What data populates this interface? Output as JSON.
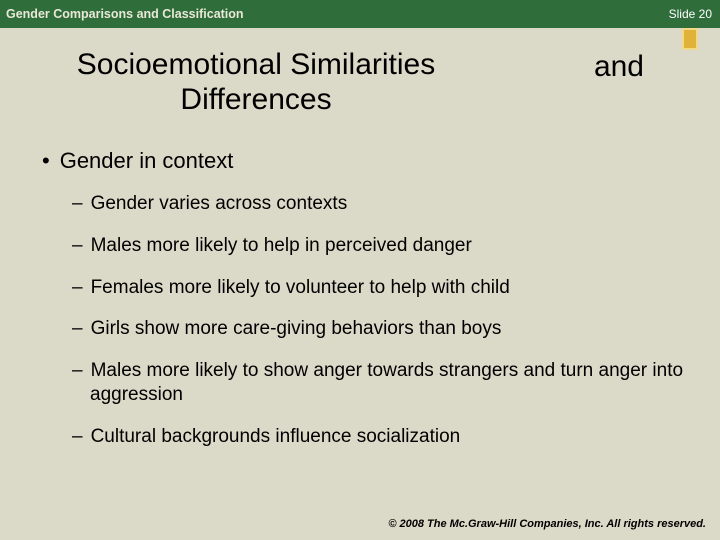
{
  "colors": {
    "background": "#dbd9c8",
    "header_bar": "#2f6d3b",
    "header_text": "#e9e7d6",
    "slide_num_text": "#ffffff",
    "accent_fill": "#e0b23a",
    "accent_border": "#f2d98a",
    "body_text": "#000000"
  },
  "header": {
    "chapter_title": "Gender Comparisons and Classification",
    "slide_label": "Slide 20"
  },
  "title": {
    "left_line1": "Socioemotional Similarities",
    "left_line2": "Differences",
    "right": "and"
  },
  "bullets": {
    "lvl1": "Gender in context",
    "lvl2": [
      "Gender varies across contexts",
      "Males more likely to help in perceived danger",
      "Females more likely to volunteer to help with child",
      "Girls show more care-giving behaviors than boys",
      "Males more likely to show anger towards strangers and turn anger into aggression",
      "Cultural backgrounds influence socialization"
    ]
  },
  "footer": {
    "copyright": "© 2008 The Mc.Graw-Hill Companies, Inc. All rights reserved."
  },
  "typography": {
    "header_fontsize": 12.5,
    "slide_num_fontsize": 12,
    "title_fontsize": 30,
    "lvl1_fontsize": 22,
    "lvl2_fontsize": 19,
    "footer_fontsize": 11
  }
}
